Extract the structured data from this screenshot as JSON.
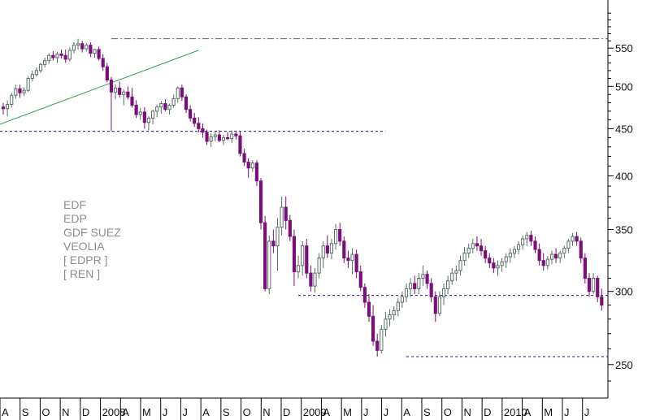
{
  "chart_data": {
    "type": "candlestick",
    "y_scale": "log",
    "ylim": [
      230,
      620
    ],
    "y_ticks": [
      250,
      300,
      350,
      400,
      450,
      500,
      550
    ],
    "x_ticks": [
      "A",
      "S",
      "O",
      "N",
      "D",
      "2008",
      "A",
      "M",
      "J",
      "J",
      "A",
      "S",
      "O",
      "N",
      "D",
      "2009",
      "A",
      "M",
      "J",
      "J",
      "A",
      "S",
      "O",
      "N",
      "D",
      "2010",
      "A",
      "M",
      "J",
      "J"
    ],
    "legend": [
      "EDF",
      "EDP",
      "GDF SUEZ",
      "VEOLIA",
      "[ EDPR ]",
      "[ REN ]"
    ],
    "grid": false,
    "colors": {
      "bear": "#7a0f7a",
      "bull_edge": "#5a6e66",
      "bull_fill": "#ffffff",
      "trend": "#2e9e52",
      "level": "#1a1a8c",
      "dashdot": "#6a6a6a",
      "axis": "#000000"
    },
    "horizontal_levels": [
      {
        "value": 447,
        "from_week": 0,
        "to_week": 92,
        "style": "dashed"
      },
      {
        "value": 297,
        "from_week": 71,
        "to_week": 179,
        "style": "dashed"
      },
      {
        "value": 255,
        "from_week": 97,
        "to_week": 179,
        "style": "dashed"
      },
      {
        "value": 563,
        "from_week": 26,
        "to_week": 179,
        "style": "dashdot"
      }
    ],
    "trendline": {
      "from": {
        "week": 0,
        "value": 455
      },
      "to": {
        "week": 47,
        "value": 547
      }
    },
    "candles": [
      {
        "o": 475,
        "h": 480,
        "l": 466,
        "c": 473
      },
      {
        "o": 473,
        "h": 483,
        "l": 464,
        "c": 478
      },
      {
        "o": 478,
        "h": 492,
        "l": 474,
        "c": 489
      },
      {
        "o": 489,
        "h": 502,
        "l": 485,
        "c": 497
      },
      {
        "o": 497,
        "h": 502,
        "l": 486,
        "c": 492
      },
      {
        "o": 492,
        "h": 499,
        "l": 488,
        "c": 495
      },
      {
        "o": 495,
        "h": 513,
        "l": 493,
        "c": 510
      },
      {
        "o": 510,
        "h": 520,
        "l": 506,
        "c": 515
      },
      {
        "o": 515,
        "h": 524,
        "l": 512,
        "c": 520
      },
      {
        "o": 520,
        "h": 530,
        "l": 517,
        "c": 528
      },
      {
        "o": 528,
        "h": 537,
        "l": 524,
        "c": 533
      },
      {
        "o": 533,
        "h": 543,
        "l": 529,
        "c": 540
      },
      {
        "o": 540,
        "h": 546,
        "l": 533,
        "c": 537
      },
      {
        "o": 537,
        "h": 545,
        "l": 530,
        "c": 542
      },
      {
        "o": 542,
        "h": 548,
        "l": 536,
        "c": 540
      },
      {
        "o": 540,
        "h": 548,
        "l": 530,
        "c": 535
      },
      {
        "o": 535,
        "h": 551,
        "l": 532,
        "c": 547
      },
      {
        "o": 547,
        "h": 558,
        "l": 543,
        "c": 554
      },
      {
        "o": 554,
        "h": 563,
        "l": 548,
        "c": 556
      },
      {
        "o": 556,
        "h": 560,
        "l": 544,
        "c": 549
      },
      {
        "o": 549,
        "h": 557,
        "l": 545,
        "c": 554
      },
      {
        "o": 554,
        "h": 558,
        "l": 538,
        "c": 543
      },
      {
        "o": 543,
        "h": 549,
        "l": 537,
        "c": 548
      },
      {
        "o": 548,
        "h": 552,
        "l": 533,
        "c": 536
      },
      {
        "o": 536,
        "h": 542,
        "l": 520,
        "c": 525
      },
      {
        "o": 525,
        "h": 530,
        "l": 505,
        "c": 508
      },
      {
        "o": 508,
        "h": 512,
        "l": 447,
        "c": 493
      },
      {
        "o": 493,
        "h": 503,
        "l": 484,
        "c": 498
      },
      {
        "o": 498,
        "h": 506,
        "l": 486,
        "c": 490
      },
      {
        "o": 490,
        "h": 496,
        "l": 477,
        "c": 493
      },
      {
        "o": 493,
        "h": 500,
        "l": 484,
        "c": 487
      },
      {
        "o": 487,
        "h": 498,
        "l": 474,
        "c": 477
      },
      {
        "o": 477,
        "h": 483,
        "l": 462,
        "c": 466
      },
      {
        "o": 466,
        "h": 474,
        "l": 460,
        "c": 469
      },
      {
        "o": 469,
        "h": 475,
        "l": 450,
        "c": 457
      },
      {
        "o": 457,
        "h": 464,
        "l": 448,
        "c": 462
      },
      {
        "o": 462,
        "h": 472,
        "l": 455,
        "c": 470
      },
      {
        "o": 470,
        "h": 478,
        "l": 463,
        "c": 475
      },
      {
        "o": 475,
        "h": 482,
        "l": 467,
        "c": 479
      },
      {
        "o": 479,
        "h": 484,
        "l": 470,
        "c": 472
      },
      {
        "o": 472,
        "h": 479,
        "l": 466,
        "c": 477
      },
      {
        "o": 477,
        "h": 490,
        "l": 474,
        "c": 485
      },
      {
        "o": 485,
        "h": 500,
        "l": 480,
        "c": 498
      },
      {
        "o": 498,
        "h": 502,
        "l": 482,
        "c": 487
      },
      {
        "o": 487,
        "h": 490,
        "l": 468,
        "c": 472
      },
      {
        "o": 472,
        "h": 477,
        "l": 458,
        "c": 462
      },
      {
        "o": 462,
        "h": 468,
        "l": 452,
        "c": 456
      },
      {
        "o": 456,
        "h": 463,
        "l": 446,
        "c": 450
      },
      {
        "o": 450,
        "h": 456,
        "l": 440,
        "c": 446
      },
      {
        "o": 446,
        "h": 449,
        "l": 432,
        "c": 436
      },
      {
        "o": 436,
        "h": 445,
        "l": 430,
        "c": 441
      },
      {
        "o": 441,
        "h": 447,
        "l": 436,
        "c": 443
      },
      {
        "o": 443,
        "h": 448,
        "l": 435,
        "c": 437
      },
      {
        "o": 437,
        "h": 443,
        "l": 432,
        "c": 440
      },
      {
        "o": 440,
        "h": 446,
        "l": 437,
        "c": 439
      },
      {
        "o": 439,
        "h": 448,
        "l": 434,
        "c": 444
      },
      {
        "o": 444,
        "h": 448,
        "l": 438,
        "c": 442
      },
      {
        "o": 442,
        "h": 447,
        "l": 420,
        "c": 423
      },
      {
        "o": 423,
        "h": 428,
        "l": 410,
        "c": 414
      },
      {
        "o": 414,
        "h": 418,
        "l": 398,
        "c": 408
      },
      {
        "o": 408,
        "h": 416,
        "l": 404,
        "c": 413
      },
      {
        "o": 413,
        "h": 416,
        "l": 390,
        "c": 395
      },
      {
        "o": 395,
        "h": 398,
        "l": 350,
        "c": 356
      },
      {
        "o": 356,
        "h": 362,
        "l": 300,
        "c": 302
      },
      {
        "o": 302,
        "h": 345,
        "l": 298,
        "c": 340
      },
      {
        "o": 340,
        "h": 350,
        "l": 330,
        "c": 336
      },
      {
        "o": 336,
        "h": 360,
        "l": 316,
        "c": 352
      },
      {
        "o": 352,
        "h": 380,
        "l": 345,
        "c": 370
      },
      {
        "o": 370,
        "h": 380,
        "l": 350,
        "c": 358
      },
      {
        "o": 358,
        "h": 363,
        "l": 340,
        "c": 344
      },
      {
        "o": 344,
        "h": 350,
        "l": 304,
        "c": 315
      },
      {
        "o": 315,
        "h": 328,
        "l": 310,
        "c": 320
      },
      {
        "o": 320,
        "h": 340,
        "l": 312,
        "c": 336
      },
      {
        "o": 336,
        "h": 342,
        "l": 310,
        "c": 314
      },
      {
        "o": 314,
        "h": 320,
        "l": 300,
        "c": 304
      },
      {
        "o": 304,
        "h": 318,
        "l": 299,
        "c": 314
      },
      {
        "o": 314,
        "h": 330,
        "l": 310,
        "c": 326
      },
      {
        "o": 326,
        "h": 340,
        "l": 318,
        "c": 336
      },
      {
        "o": 336,
        "h": 345,
        "l": 326,
        "c": 330
      },
      {
        "o": 330,
        "h": 342,
        "l": 325,
        "c": 338
      },
      {
        "o": 338,
        "h": 355,
        "l": 333,
        "c": 350
      },
      {
        "o": 350,
        "h": 356,
        "l": 336,
        "c": 340
      },
      {
        "o": 340,
        "h": 344,
        "l": 322,
        "c": 326
      },
      {
        "o": 326,
        "h": 332,
        "l": 318,
        "c": 324
      },
      {
        "o": 324,
        "h": 334,
        "l": 313,
        "c": 329
      },
      {
        "o": 329,
        "h": 333,
        "l": 310,
        "c": 315
      },
      {
        "o": 315,
        "h": 320,
        "l": 300,
        "c": 303
      },
      {
        "o": 303,
        "h": 306,
        "l": 288,
        "c": 292
      },
      {
        "o": 292,
        "h": 298,
        "l": 278,
        "c": 282
      },
      {
        "o": 282,
        "h": 290,
        "l": 262,
        "c": 265
      },
      {
        "o": 265,
        "h": 270,
        "l": 255,
        "c": 259
      },
      {
        "o": 259,
        "h": 276,
        "l": 257,
        "c": 273
      },
      {
        "o": 273,
        "h": 285,
        "l": 268,
        "c": 280
      },
      {
        "o": 280,
        "h": 287,
        "l": 275,
        "c": 283
      },
      {
        "o": 283,
        "h": 289,
        "l": 279,
        "c": 286
      },
      {
        "o": 286,
        "h": 295,
        "l": 282,
        "c": 292
      },
      {
        "o": 292,
        "h": 300,
        "l": 288,
        "c": 296
      },
      {
        "o": 296,
        "h": 306,
        "l": 292,
        "c": 302
      },
      {
        "o": 302,
        "h": 310,
        "l": 296,
        "c": 306
      },
      {
        "o": 306,
        "h": 312,
        "l": 298,
        "c": 302
      },
      {
        "o": 302,
        "h": 314,
        "l": 298,
        "c": 310
      },
      {
        "o": 310,
        "h": 320,
        "l": 304,
        "c": 313
      },
      {
        "o": 313,
        "h": 316,
        "l": 302,
        "c": 306
      },
      {
        "o": 306,
        "h": 310,
        "l": 292,
        "c": 296
      },
      {
        "o": 296,
        "h": 300,
        "l": 278,
        "c": 284
      },
      {
        "o": 284,
        "h": 300,
        "l": 282,
        "c": 296
      },
      {
        "o": 296,
        "h": 306,
        "l": 290,
        "c": 302
      },
      {
        "o": 302,
        "h": 312,
        "l": 298,
        "c": 308
      },
      {
        "o": 308,
        "h": 318,
        "l": 305,
        "c": 314
      },
      {
        "o": 314,
        "h": 320,
        "l": 308,
        "c": 316
      },
      {
        "o": 316,
        "h": 328,
        "l": 312,
        "c": 324
      },
      {
        "o": 324,
        "h": 335,
        "l": 320,
        "c": 330
      },
      {
        "o": 330,
        "h": 338,
        "l": 326,
        "c": 334
      },
      {
        "o": 334,
        "h": 342,
        "l": 330,
        "c": 338
      },
      {
        "o": 338,
        "h": 344,
        "l": 332,
        "c": 336
      },
      {
        "o": 336,
        "h": 342,
        "l": 328,
        "c": 332
      },
      {
        "o": 332,
        "h": 336,
        "l": 322,
        "c": 326
      },
      {
        "o": 326,
        "h": 330,
        "l": 318,
        "c": 322
      },
      {
        "o": 322,
        "h": 326,
        "l": 314,
        "c": 318
      },
      {
        "o": 318,
        "h": 324,
        "l": 312,
        "c": 320
      },
      {
        "o": 320,
        "h": 326,
        "l": 315,
        "c": 323
      },
      {
        "o": 323,
        "h": 330,
        "l": 318,
        "c": 327
      },
      {
        "o": 327,
        "h": 334,
        "l": 322,
        "c": 330
      },
      {
        "o": 330,
        "h": 336,
        "l": 326,
        "c": 333
      },
      {
        "o": 333,
        "h": 340,
        "l": 329,
        "c": 337
      },
      {
        "o": 337,
        "h": 345,
        "l": 333,
        "c": 342
      },
      {
        "o": 342,
        "h": 348,
        "l": 336,
        "c": 345
      },
      {
        "o": 345,
        "h": 349,
        "l": 336,
        "c": 340
      },
      {
        "o": 340,
        "h": 344,
        "l": 330,
        "c": 333
      },
      {
        "o": 333,
        "h": 338,
        "l": 320,
        "c": 324
      },
      {
        "o": 324,
        "h": 330,
        "l": 316,
        "c": 320
      },
      {
        "o": 320,
        "h": 328,
        "l": 317,
        "c": 325
      },
      {
        "o": 325,
        "h": 332,
        "l": 321,
        "c": 329
      },
      {
        "o": 329,
        "h": 334,
        "l": 322,
        "c": 326
      },
      {
        "o": 326,
        "h": 332,
        "l": 322,
        "c": 330
      },
      {
        "o": 330,
        "h": 336,
        "l": 326,
        "c": 334
      },
      {
        "o": 334,
        "h": 342,
        "l": 330,
        "c": 340
      },
      {
        "o": 340,
        "h": 347,
        "l": 336,
        "c": 344
      },
      {
        "o": 344,
        "h": 348,
        "l": 336,
        "c": 340
      },
      {
        "o": 340,
        "h": 343,
        "l": 322,
        "c": 326
      },
      {
        "o": 326,
        "h": 330,
        "l": 306,
        "c": 310
      },
      {
        "o": 310,
        "h": 314,
        "l": 296,
        "c": 300
      },
      {
        "o": 300,
        "h": 314,
        "l": 298,
        "c": 310
      },
      {
        "o": 310,
        "h": 312,
        "l": 292,
        "c": 296
      },
      {
        "o": 296,
        "h": 302,
        "l": 286,
        "c": 290
      }
    ]
  }
}
